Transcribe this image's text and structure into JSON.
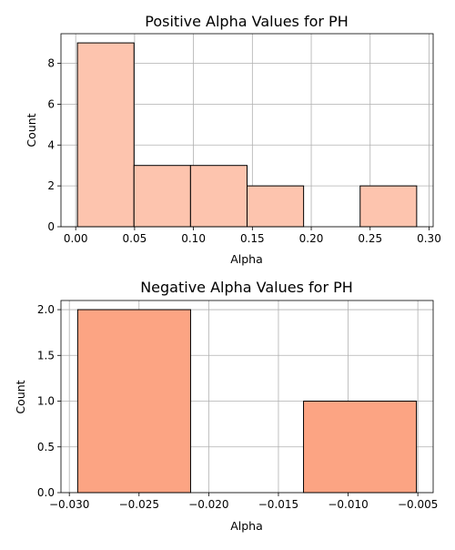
{
  "chart_data": [
    {
      "type": "bar",
      "title": "Positive Alpha Values for PH",
      "xlabel": "Alpha",
      "ylabel": "Count",
      "bar_color": "#fdc4ae",
      "edge_color": "#000000",
      "bins": [
        {
          "x0": 0.0015,
          "x1": 0.0495,
          "count": 9
        },
        {
          "x0": 0.0495,
          "x1": 0.0975,
          "count": 3
        },
        {
          "x0": 0.0975,
          "x1": 0.1455,
          "count": 3
        },
        {
          "x0": 0.1455,
          "x1": 0.1935,
          "count": 2
        },
        {
          "x0": 0.1935,
          "x1": 0.2415,
          "count": 0
        },
        {
          "x0": 0.2415,
          "x1": 0.2895,
          "count": 2
        }
      ],
      "xlim": [
        -0.0125,
        0.3035
      ],
      "ylim": [
        0,
        9.45
      ],
      "xticks": [
        0.0,
        0.05,
        0.1,
        0.15,
        0.2,
        0.25,
        0.3
      ],
      "xtick_labels": [
        "0.00",
        "0.05",
        "0.10",
        "0.15",
        "0.20",
        "0.25",
        "0.30"
      ],
      "yticks": [
        0,
        2,
        4,
        6,
        8
      ],
      "ytick_labels": [
        "0",
        "2",
        "4",
        "6",
        "8"
      ],
      "grid": true
    },
    {
      "type": "bar",
      "title": "Negative Alpha Values for PH",
      "xlabel": "Alpha",
      "ylabel": "Count",
      "bar_color": "#fca483",
      "edge_color": "#000000",
      "bins": [
        {
          "x0": -0.0294,
          "x1": -0.0213,
          "count": 2
        },
        {
          "x0": -0.0213,
          "x1": -0.0132,
          "count": 0
        },
        {
          "x0": -0.0132,
          "x1": -0.0051,
          "count": 1
        }
      ],
      "xlim": [
        -0.0306,
        -0.0039
      ],
      "ylim": [
        0,
        2.1
      ],
      "xticks": [
        -0.03,
        -0.025,
        -0.02,
        -0.015,
        -0.01,
        -0.005
      ],
      "xtick_labels": [
        "−0.030",
        "−0.025",
        "−0.020",
        "−0.015",
        "−0.010",
        "−0.005"
      ],
      "yticks": [
        0,
        0.5,
        1.0,
        1.5,
        2.0
      ],
      "ytick_labels": [
        "0.0",
        "0.5",
        "1.0",
        "1.5",
        "2.0"
      ],
      "grid": true
    }
  ]
}
